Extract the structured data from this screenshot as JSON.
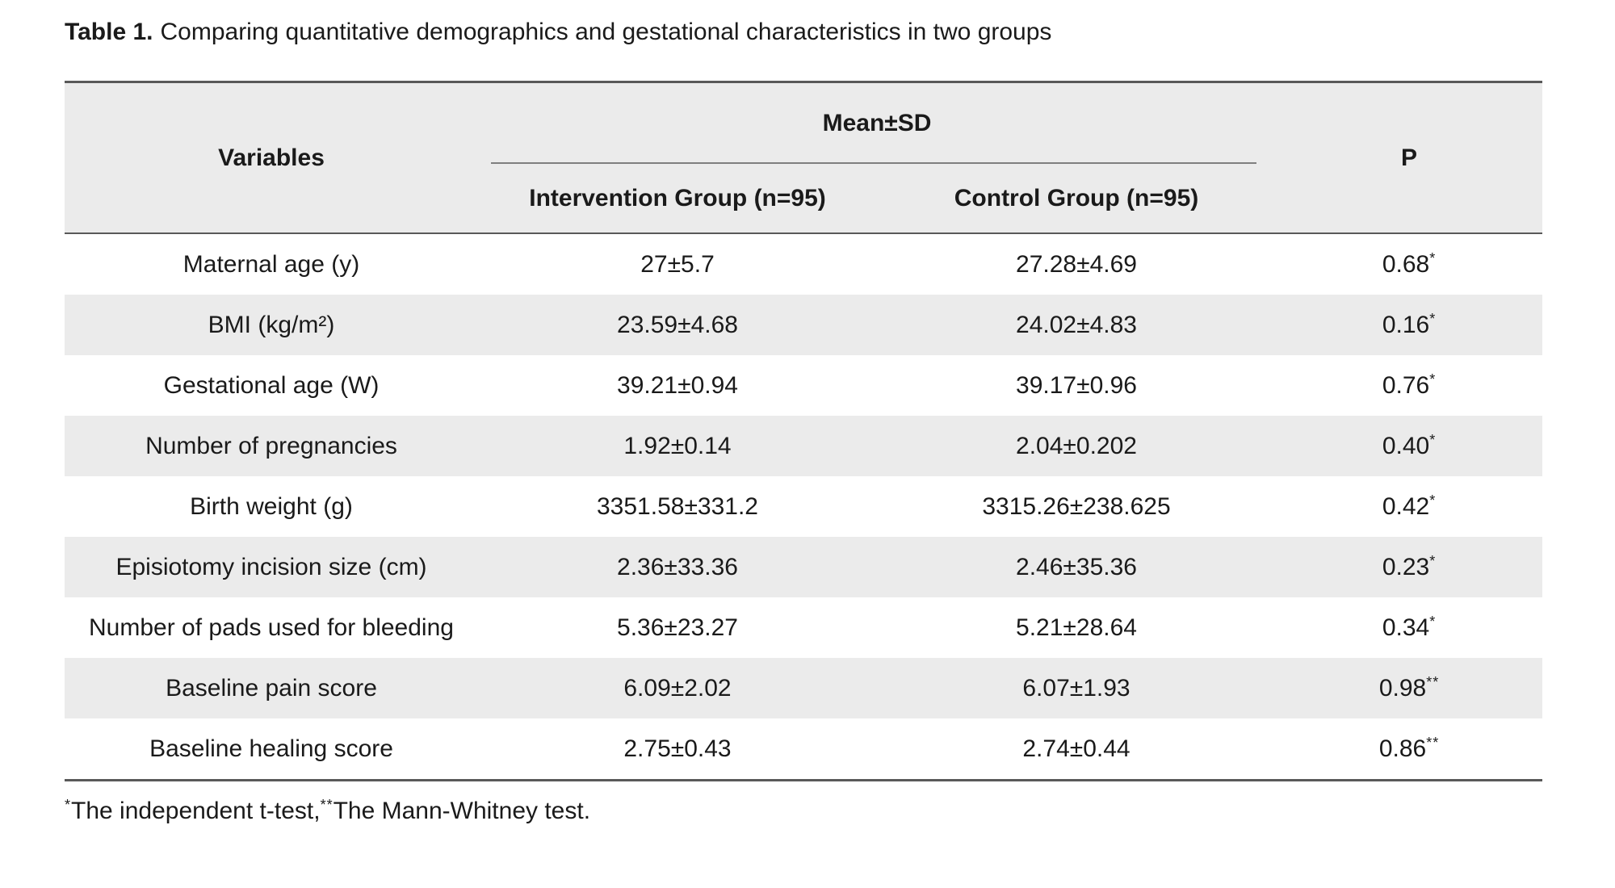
{
  "title": {
    "label": "Table 1.",
    "text": "Comparing quantitative demographics and gestational characteristics in two groups"
  },
  "table": {
    "header": {
      "variables": "Variables",
      "mean_sd": "Mean±SD",
      "intervention": "Intervention Group (n=95)",
      "control": "Control Group (n=95)",
      "p": "P"
    },
    "rows": [
      {
        "variable": "Maternal age (y)",
        "intervention": "27±5.7",
        "control": "27.28±4.69",
        "p": "0.68",
        "p_sup": "*"
      },
      {
        "variable": "BMI (kg/m²)",
        "intervention": "23.59±4.68",
        "control": "24.02±4.83",
        "p": "0.16",
        "p_sup": "*"
      },
      {
        "variable": "Gestational age (W)",
        "intervention": "39.21±0.94",
        "control": "39.17±0.96",
        "p": "0.76",
        "p_sup": "*"
      },
      {
        "variable": "Number of pregnancies",
        "intervention": "1.92±0.14",
        "control": "2.04±0.202",
        "p": "0.40",
        "p_sup": "*"
      },
      {
        "variable": "Birth weight (g)",
        "intervention": "3351.58±331.2",
        "control": "3315.26±238.625",
        "p": "0.42",
        "p_sup": "*"
      },
      {
        "variable": "Episiotomy incision size (cm)",
        "intervention": "2.36±33.36",
        "control": "2.46±35.36",
        "p": "0.23",
        "p_sup": "*"
      },
      {
        "variable": "Number of pads used for bleeding",
        "intervention": "5.36±23.27",
        "control": "5.21±28.64",
        "p": "0.34",
        "p_sup": "*"
      },
      {
        "variable": "Baseline pain score",
        "intervention": "6.09±2.02",
        "control": "6.07±1.93",
        "p": "0.98",
        "p_sup": "**"
      },
      {
        "variable": "Baseline healing score",
        "intervention": "2.75±0.43",
        "control": "2.74±0.44",
        "p": "0.86",
        "p_sup": "**"
      }
    ]
  },
  "footnote": {
    "sup1": "*",
    "text1": "The independent t-test,",
    "sup2": "**",
    "text2": "The Mann-Whitney test."
  },
  "colors": {
    "header_bg": "#ebebeb",
    "stripe_bg": "#ebebeb",
    "border_dark": "#595959",
    "line_mid": "#7f7f7f",
    "text": "#1a1a1a"
  }
}
